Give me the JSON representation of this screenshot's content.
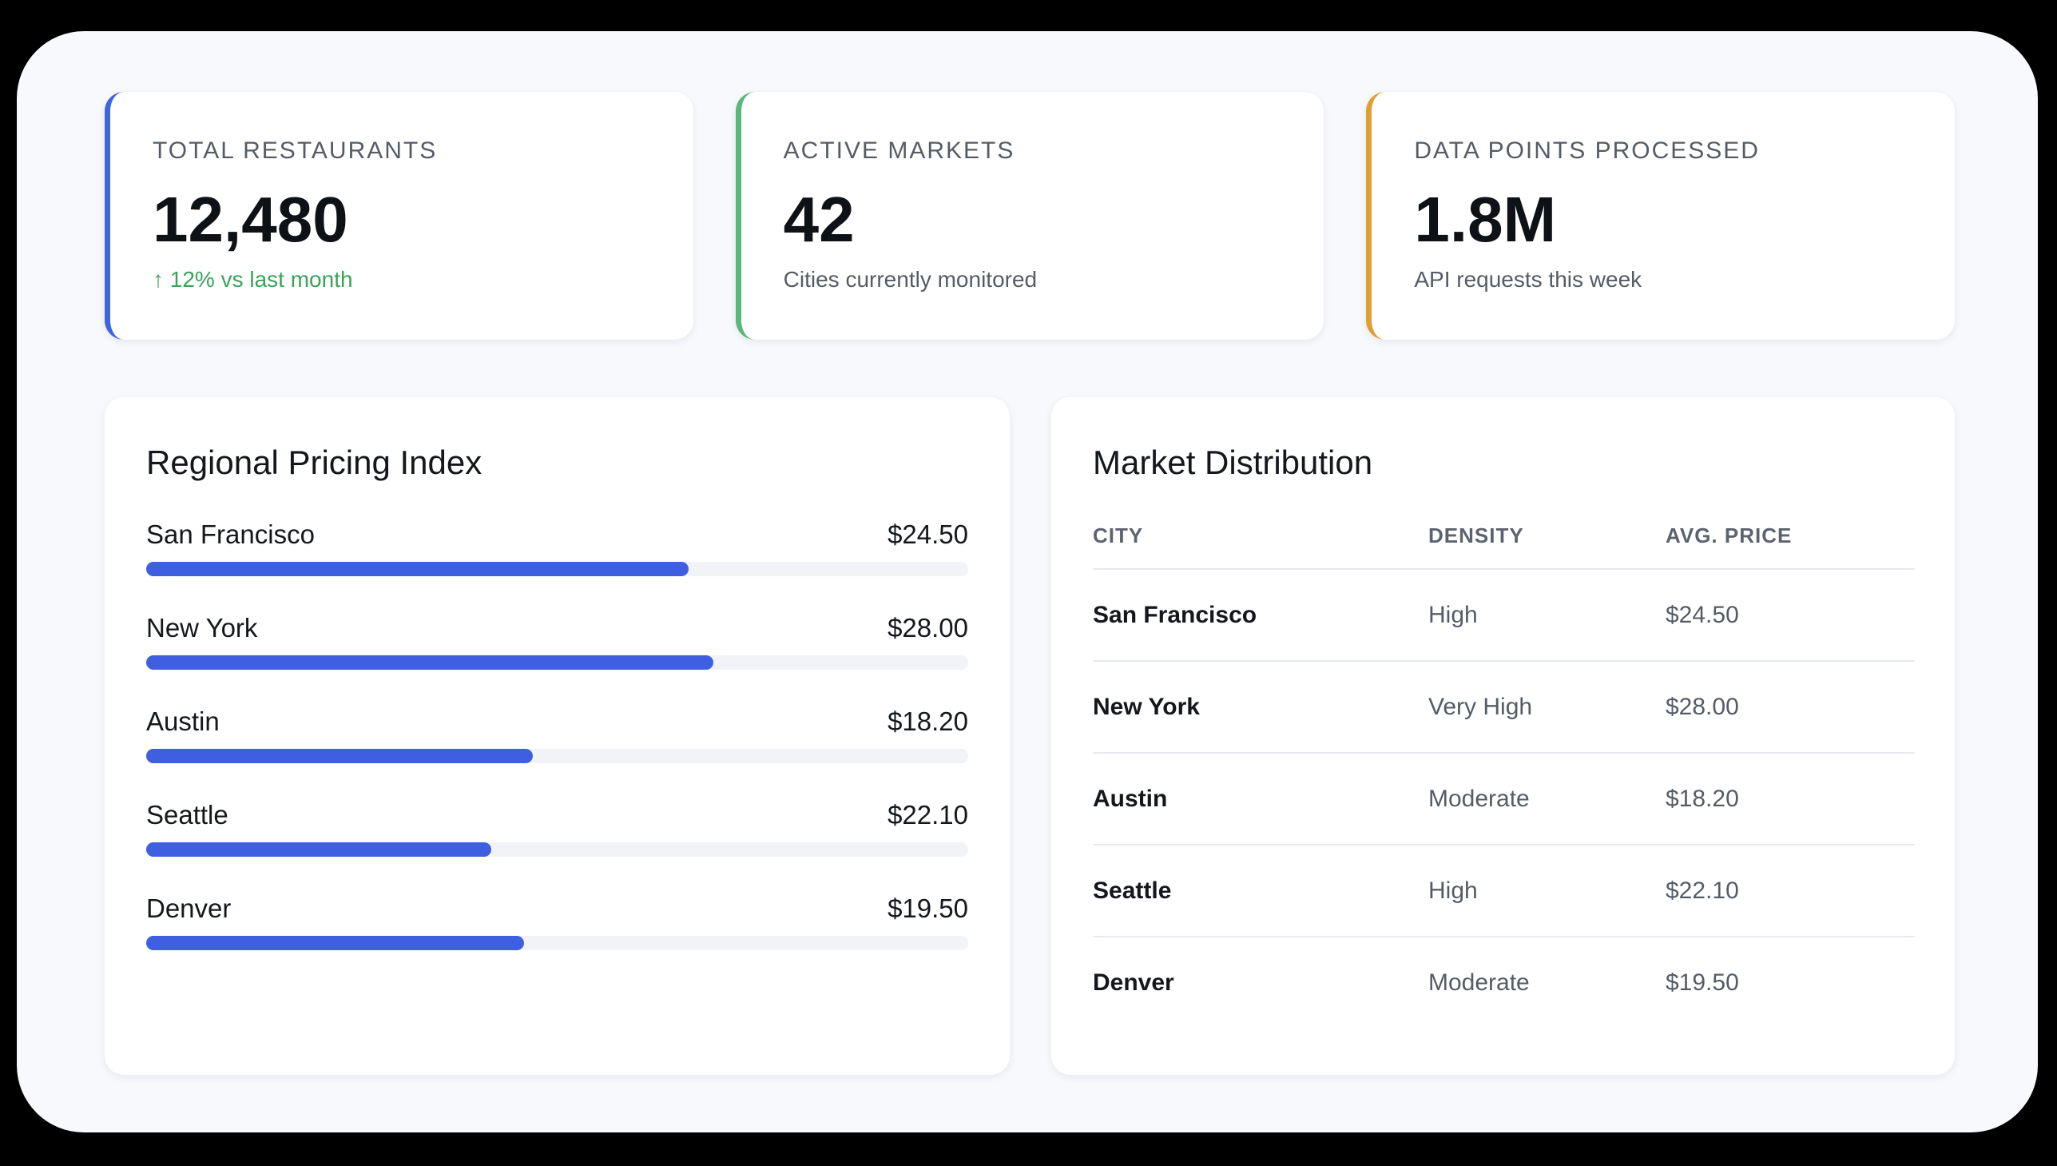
{
  "stats": [
    {
      "label": "TOTAL RESTAURANTS",
      "value": "12,480",
      "sub": "↑ 12% vs last month",
      "accent": "#3e64e0"
    },
    {
      "label": "ACTIVE MARKETS",
      "value": "42",
      "sub": "Cities currently monitored",
      "accent": "#5cb87a"
    },
    {
      "label": "DATA POINTS PROCESSED",
      "value": "1.8M",
      "sub": "API requests this week",
      "accent": "#e0a030"
    }
  ],
  "pricing": {
    "title": "Regional Pricing Index",
    "items": [
      {
        "city": "San Francisco",
        "price": "$24.50",
        "fill": 0.66
      },
      {
        "city": "New York",
        "price": "$28.00",
        "fill": 0.69
      },
      {
        "city": "Austin",
        "price": "$18.20",
        "fill": 0.47
      },
      {
        "city": "Seattle",
        "price": "$22.10",
        "fill": 0.42
      },
      {
        "city": "Denver",
        "price": "$19.50",
        "fill": 0.46
      }
    ]
  },
  "distribution": {
    "title": "Market Distribution",
    "headers": [
      "CITY",
      "DENSITY",
      "AVG. PRICE"
    ],
    "rows": [
      {
        "city": "San Francisco",
        "density": "High",
        "price": "$24.50"
      },
      {
        "city": "New York",
        "density": "Very High",
        "price": "$28.00"
      },
      {
        "city": "Austin",
        "density": "Moderate",
        "price": "$18.20"
      },
      {
        "city": "Seattle",
        "density": "High",
        "price": "$22.10"
      },
      {
        "city": "Denver",
        "density": "Moderate",
        "price": "$19.50"
      }
    ]
  },
  "colors": {
    "bar": "#3e5fe0",
    "positive": "#3aa35a"
  }
}
